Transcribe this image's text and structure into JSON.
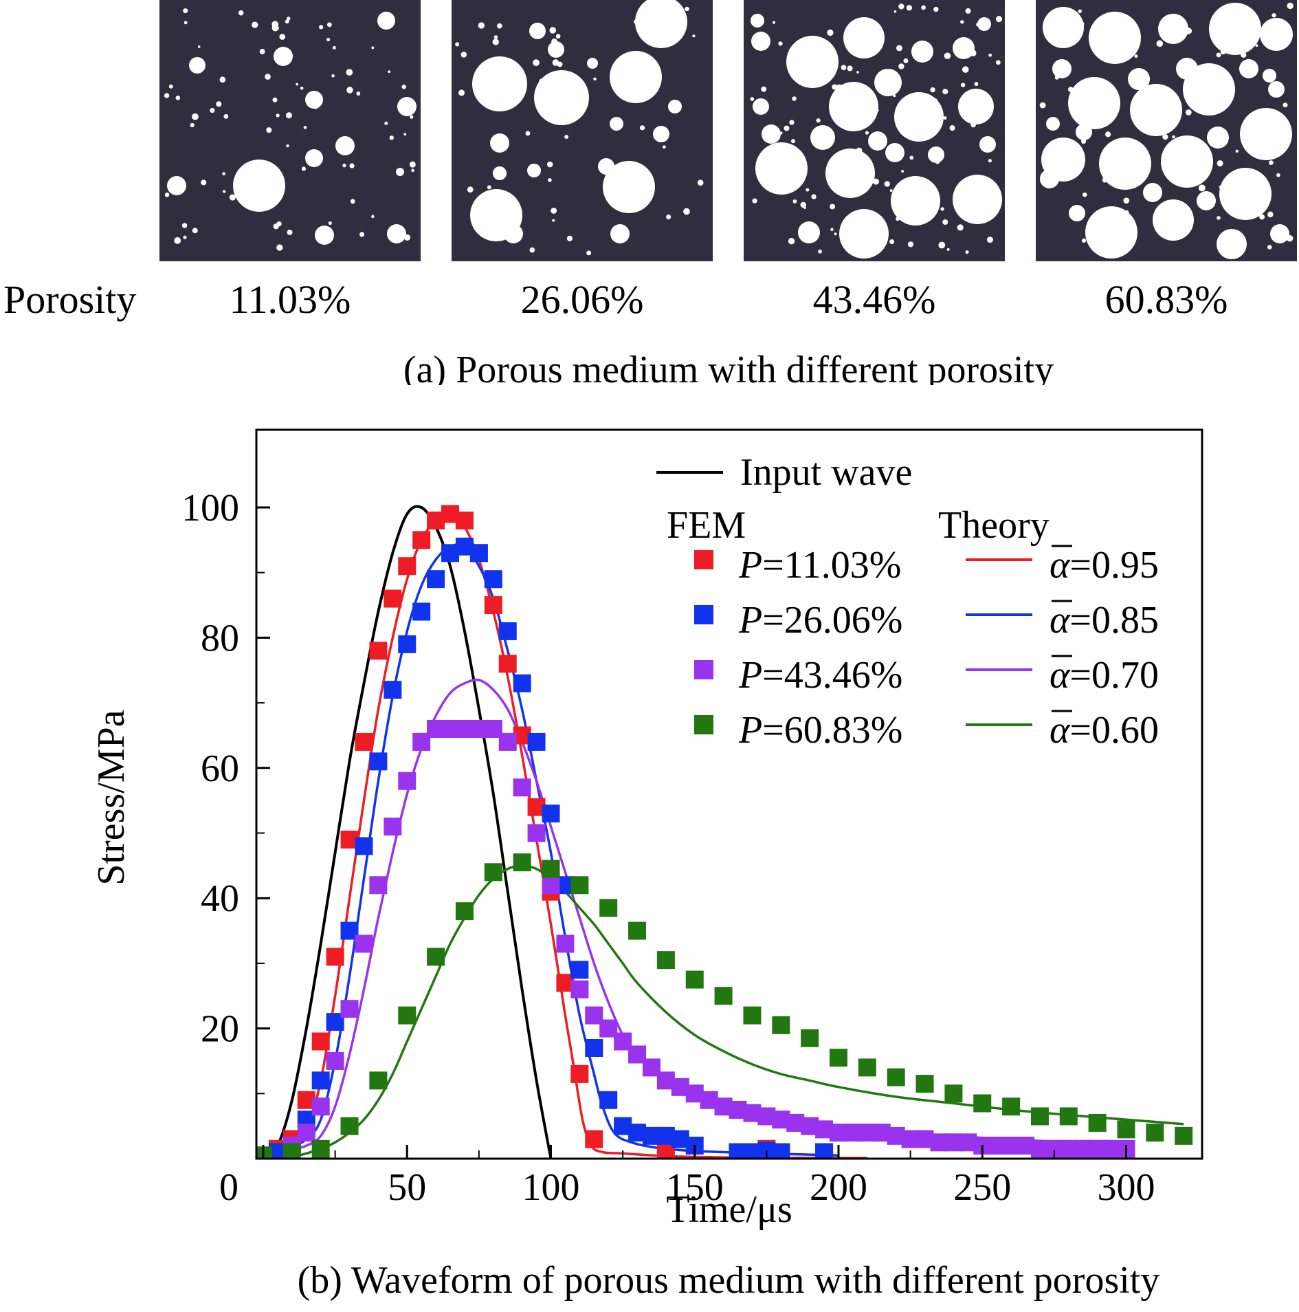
{
  "panel_a": {
    "row_label": "Porosity",
    "porosities": [
      "11.03%",
      "26.06%",
      "43.46%",
      "60.83%"
    ],
    "caption": "(a) Porous medium with different porosity",
    "colors": {
      "matrix": "#302e3e",
      "pore": "#ffffff"
    }
  },
  "panel_b": {
    "caption": "(b) Waveform of porous medium with different porosity"
  },
  "chart_data": {
    "type": "line",
    "xlabel": "Time/μs",
    "ylabel": "Stress/MPa",
    "xlim": [
      0,
      320
    ],
    "ylim": [
      0,
      105
    ],
    "x_ticks": [
      0,
      50,
      100,
      150,
      200,
      250,
      300
    ],
    "y_ticks": [
      20,
      40,
      60,
      80,
      100
    ],
    "legend": {
      "placement": "top-right",
      "input_label": "Input wave",
      "fem_header": "FEM",
      "theory_header": "Theory",
      "entries": [
        {
          "fem_prefix": "P",
          "fem_value": "=11.03%",
          "theory_symbol": "α",
          "theory_value": "=0.95",
          "color": "#ee1c25"
        },
        {
          "fem_prefix": "P",
          "fem_value": "=26.06%",
          "theory_symbol": "α",
          "theory_value": "=0.85",
          "color": "#1133ee"
        },
        {
          "fem_prefix": "P",
          "fem_value": "=43.46%",
          "theory_symbol": "α",
          "theory_value": "=0.70",
          "color": "#9933ee"
        },
        {
          "fem_prefix": "P",
          "fem_value": "=60.83%",
          "theory_symbol": "α",
          "theory_value": "=0.60",
          "color": "#227711"
        }
      ]
    },
    "input_wave": {
      "color": "#000000",
      "points": [
        [
          0,
          0
        ],
        [
          5,
          2
        ],
        [
          10,
          9
        ],
        [
          15,
          20
        ],
        [
          20,
          33
        ],
        [
          25,
          47
        ],
        [
          30,
          61
        ],
        [
          35,
          73
        ],
        [
          40,
          84
        ],
        [
          45,
          93
        ],
        [
          50,
          99
        ],
        [
          55,
          100
        ],
        [
          60,
          97
        ],
        [
          65,
          91
        ],
        [
          70,
          81
        ],
        [
          75,
          69
        ],
        [
          80,
          56
        ],
        [
          85,
          41
        ],
        [
          90,
          26
        ],
        [
          95,
          12
        ],
        [
          100,
          0
        ]
      ]
    },
    "theory": [
      {
        "name": "α=0.95",
        "color": "#ee1c25",
        "points": [
          [
            0,
            1
          ],
          [
            10,
            2
          ],
          [
            15,
            4
          ],
          [
            20,
            12
          ],
          [
            25,
            25
          ],
          [
            30,
            40
          ],
          [
            35,
            55
          ],
          [
            40,
            69
          ],
          [
            45,
            80
          ],
          [
            50,
            89
          ],
          [
            55,
            95
          ],
          [
            60,
            98
          ],
          [
            65,
            99
          ],
          [
            70,
            97
          ],
          [
            75,
            92
          ],
          [
            80,
            84
          ],
          [
            85,
            74
          ],
          [
            90,
            62
          ],
          [
            95,
            49
          ],
          [
            100,
            36
          ],
          [
            105,
            22
          ],
          [
            108,
            14
          ],
          [
            111,
            6
          ],
          [
            114,
            2
          ],
          [
            118,
            1
          ],
          [
            125,
            0.8
          ],
          [
            140,
            0.4
          ],
          [
            160,
            0.2
          ],
          [
            200,
            0.1
          ],
          [
            210,
            0.1
          ]
        ]
      },
      {
        "name": "α=0.85",
        "color": "#1133ee",
        "points": [
          [
            0,
            1
          ],
          [
            10,
            2
          ],
          [
            15,
            3
          ],
          [
            20,
            6
          ],
          [
            25,
            15
          ],
          [
            30,
            28
          ],
          [
            35,
            43
          ],
          [
            40,
            58
          ],
          [
            45,
            71
          ],
          [
            50,
            81
          ],
          [
            55,
            88
          ],
          [
            60,
            92
          ],
          [
            65,
            94
          ],
          [
            70,
            94
          ],
          [
            75,
            91
          ],
          [
            80,
            86
          ],
          [
            85,
            78
          ],
          [
            90,
            69
          ],
          [
            95,
            58
          ],
          [
            100,
            47
          ],
          [
            105,
            34
          ],
          [
            110,
            22
          ],
          [
            115,
            13
          ],
          [
            118,
            8
          ],
          [
            122,
            4
          ],
          [
            128,
            2.5
          ],
          [
            140,
            1.5
          ],
          [
            160,
            1
          ],
          [
            200,
            0.5
          ]
        ]
      },
      {
        "name": "α=0.70",
        "color": "#9933ee",
        "points": [
          [
            0,
            1
          ],
          [
            10,
            1.5
          ],
          [
            15,
            2
          ],
          [
            20,
            3.5
          ],
          [
            25,
            8
          ],
          [
            30,
            16
          ],
          [
            35,
            26
          ],
          [
            40,
            37
          ],
          [
            45,
            47
          ],
          [
            50,
            56
          ],
          [
            55,
            63
          ],
          [
            60,
            68
          ],
          [
            65,
            71.5
          ],
          [
            70,
            73
          ],
          [
            75,
            73.5
          ],
          [
            80,
            72
          ],
          [
            85,
            69
          ],
          [
            90,
            64
          ],
          [
            95,
            58
          ],
          [
            100,
            51
          ],
          [
            105,
            44
          ],
          [
            110,
            37
          ],
          [
            115,
            30
          ],
          [
            120,
            24
          ],
          [
            125,
            19
          ],
          [
            130,
            16
          ],
          [
            140,
            12
          ],
          [
            150,
            9.5
          ],
          [
            160,
            8
          ],
          [
            170,
            7
          ],
          [
            180,
            6
          ],
          [
            200,
            5
          ],
          [
            220,
            4
          ],
          [
            250,
            3.2
          ],
          [
            280,
            2.5
          ],
          [
            300,
            2
          ]
        ]
      },
      {
        "name": "α=0.60",
        "color": "#227711",
        "points": [
          [
            0,
            0
          ],
          [
            10,
            0.3
          ],
          [
            15,
            0.8
          ],
          [
            20,
            1.5
          ],
          [
            25,
            2.5
          ],
          [
            30,
            4
          ],
          [
            35,
            6
          ],
          [
            40,
            9
          ],
          [
            45,
            13
          ],
          [
            50,
            18
          ],
          [
            55,
            23
          ],
          [
            60,
            28
          ],
          [
            65,
            33
          ],
          [
            70,
            37
          ],
          [
            75,
            40.5
          ],
          [
            80,
            43
          ],
          [
            85,
            44.5
          ],
          [
            90,
            45
          ],
          [
            95,
            44.5
          ],
          [
            100,
            43
          ],
          [
            105,
            41
          ],
          [
            110,
            38.5
          ],
          [
            115,
            36
          ],
          [
            120,
            33
          ],
          [
            125,
            30
          ],
          [
            130,
            27
          ],
          [
            140,
            22.5
          ],
          [
            150,
            19
          ],
          [
            160,
            16.5
          ],
          [
            170,
            14.5
          ],
          [
            180,
            13
          ],
          [
            190,
            12
          ],
          [
            200,
            11
          ],
          [
            220,
            9.5
          ],
          [
            240,
            8.5
          ],
          [
            260,
            7.5
          ],
          [
            280,
            6.7
          ],
          [
            300,
            6
          ],
          [
            320,
            5.3
          ]
        ]
      }
    ],
    "fem": [
      {
        "name": "P=11.03%",
        "color": "#ee1c25",
        "points": [
          [
            5,
            1.5
          ],
          [
            10,
            3
          ],
          [
            15,
            9
          ],
          [
            20,
            18
          ],
          [
            25,
            31
          ],
          [
            30,
            49
          ],
          [
            35,
            64
          ],
          [
            40,
            78
          ],
          [
            45,
            86
          ],
          [
            50,
            91
          ],
          [
            55,
            95
          ],
          [
            60,
            98
          ],
          [
            65,
            99
          ],
          [
            70,
            98
          ],
          [
            75,
            93
          ],
          [
            80,
            85
          ],
          [
            85,
            76
          ],
          [
            90,
            65
          ],
          [
            95,
            54
          ],
          [
            100,
            41
          ],
          [
            105,
            27
          ],
          [
            110,
            13
          ],
          [
            115,
            3
          ],
          [
            140,
            1
          ],
          [
            175,
            1.5
          ],
          [
            180,
            1
          ],
          [
            195,
            1
          ]
        ]
      },
      {
        "name": "P=26.06%",
        "color": "#1133ee",
        "points": [
          [
            5,
            1
          ],
          [
            10,
            2
          ],
          [
            15,
            6
          ],
          [
            20,
            12
          ],
          [
            25,
            21
          ],
          [
            30,
            35
          ],
          [
            35,
            48
          ],
          [
            40,
            61
          ],
          [
            45,
            72
          ],
          [
            50,
            79
          ],
          [
            55,
            84
          ],
          [
            60,
            89
          ],
          [
            65,
            93
          ],
          [
            70,
            94
          ],
          [
            75,
            93
          ],
          [
            80,
            89
          ],
          [
            85,
            81
          ],
          [
            90,
            73
          ],
          [
            95,
            64
          ],
          [
            100,
            53
          ],
          [
            105,
            42
          ],
          [
            110,
            29
          ],
          [
            115,
            17
          ],
          [
            120,
            9
          ],
          [
            125,
            5
          ],
          [
            130,
            4
          ],
          [
            135,
            3.5
          ],
          [
            140,
            3.5
          ],
          [
            145,
            3
          ],
          [
            150,
            2
          ],
          [
            165,
            1
          ],
          [
            170,
            1
          ],
          [
            175,
            1.2
          ],
          [
            180,
            1
          ],
          [
            195,
            1
          ]
        ]
      },
      {
        "name": "P=43.46%",
        "color": "#9933ee",
        "points": [
          [
            10,
            2
          ],
          [
            15,
            4
          ],
          [
            20,
            8
          ],
          [
            25,
            15
          ],
          [
            30,
            23
          ],
          [
            35,
            33
          ],
          [
            40,
            42
          ],
          [
            45,
            51
          ],
          [
            50,
            58
          ],
          [
            55,
            64
          ],
          [
            60,
            66
          ],
          [
            65,
            66
          ],
          [
            70,
            66
          ],
          [
            75,
            66
          ],
          [
            80,
            66
          ],
          [
            85,
            64
          ],
          [
            90,
            57
          ],
          [
            95,
            50
          ],
          [
            100,
            42
          ],
          [
            105,
            33
          ],
          [
            110,
            26
          ],
          [
            115,
            22
          ],
          [
            120,
            20
          ],
          [
            125,
            18
          ],
          [
            130,
            16
          ],
          [
            135,
            14
          ],
          [
            140,
            12
          ],
          [
            145,
            11
          ],
          [
            150,
            10
          ],
          [
            155,
            9
          ],
          [
            160,
            8
          ],
          [
            165,
            7.5
          ],
          [
            170,
            7
          ],
          [
            175,
            6.5
          ],
          [
            180,
            6
          ],
          [
            185,
            5.5
          ],
          [
            190,
            5
          ],
          [
            195,
            4.5
          ],
          [
            200,
            4
          ],
          [
            205,
            4
          ],
          [
            210,
            4
          ],
          [
            215,
            4
          ],
          [
            220,
            3.5
          ],
          [
            225,
            3
          ],
          [
            230,
            3
          ],
          [
            235,
            2.5
          ],
          [
            240,
            2.5
          ],
          [
            245,
            2.5
          ],
          [
            250,
            2
          ],
          [
            255,
            2
          ],
          [
            260,
            2
          ],
          [
            265,
            2
          ],
          [
            270,
            1.5
          ],
          [
            275,
            1.5
          ],
          [
            280,
            1.5
          ],
          [
            285,
            1.5
          ],
          [
            290,
            1.5
          ],
          [
            295,
            1.5
          ],
          [
            300,
            1.5
          ]
        ]
      },
      {
        "name": "P=60.83%",
        "color": "#227711",
        "points": [
          [
            0,
            0.5
          ],
          [
            10,
            1
          ],
          [
            20,
            1.5
          ],
          [
            30,
            5
          ],
          [
            40,
            12
          ],
          [
            50,
            22
          ],
          [
            60,
            31
          ],
          [
            70,
            38
          ],
          [
            80,
            44
          ],
          [
            90,
            45.5
          ],
          [
            100,
            44.5
          ],
          [
            110,
            42
          ],
          [
            120,
            38.5
          ],
          [
            130,
            35
          ],
          [
            140,
            30.5
          ],
          [
            150,
            27.5
          ],
          [
            160,
            25
          ],
          [
            170,
            22
          ],
          [
            180,
            20.5
          ],
          [
            190,
            18.5
          ],
          [
            200,
            15.5
          ],
          [
            210,
            14
          ],
          [
            220,
            12.5
          ],
          [
            230,
            11.5
          ],
          [
            240,
            10
          ],
          [
            250,
            8.5
          ],
          [
            260,
            8
          ],
          [
            270,
            6.5
          ],
          [
            280,
            6.5
          ],
          [
            290,
            5.5
          ],
          [
            300,
            4.5
          ],
          [
            310,
            4
          ],
          [
            320,
            3.5
          ]
        ]
      }
    ]
  }
}
